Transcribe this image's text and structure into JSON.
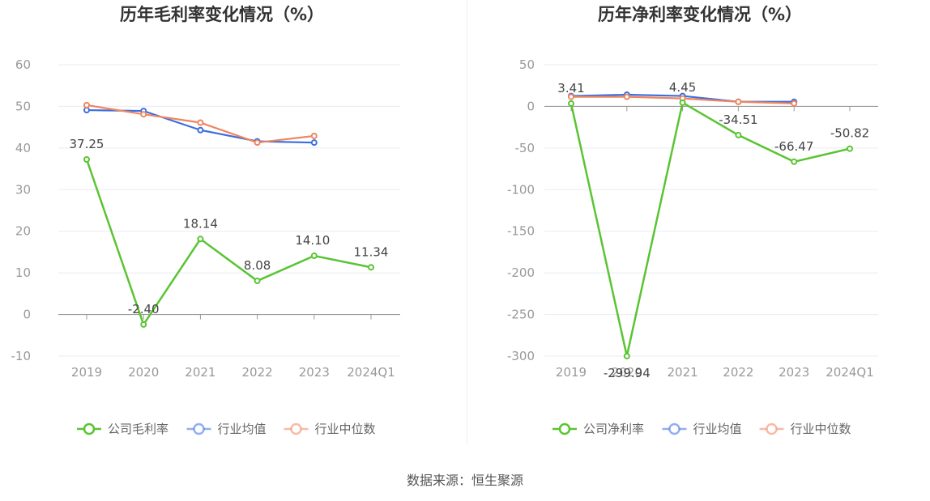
{
  "colors": {
    "company": "#5ac432",
    "industry_avg": "#3b6fe0",
    "industry_median": "#f0855e",
    "grid": "#e8ebf4",
    "axis": "#999999"
  },
  "source": "数据来源：恒生聚源",
  "chart_data": [
    {
      "type": "line",
      "title": "历年毛利率变化情况（%）",
      "categories": [
        "2019",
        "2020",
        "2021",
        "2022",
        "2023",
        "2024Q1"
      ],
      "ylim": [
        -10,
        60
      ],
      "yticks": [
        "-10",
        "0",
        "10",
        "20",
        "30",
        "40",
        "50",
        "60"
      ],
      "grid": true,
      "legend_position": "bottom",
      "series": [
        {
          "name": "公司毛利率",
          "key": "company",
          "values": [
            37.25,
            -2.4,
            18.14,
            8.08,
            14.1,
            11.34
          ],
          "labels": [
            "37.25",
            "-2.40",
            "18.14",
            "8.08",
            "14.10",
            "11.34"
          ]
        },
        {
          "name": "行业均值",
          "key": "industry_avg",
          "values": [
            49.1,
            48.9,
            44.3,
            41.6,
            41.3,
            null
          ]
        },
        {
          "name": "行业中位数",
          "key": "industry_median",
          "values": [
            50.3,
            48.1,
            46.1,
            41.3,
            42.9,
            null
          ]
        }
      ]
    },
    {
      "type": "line",
      "title": "历年净利率变化情况（%）",
      "categories": [
        "2019",
        "2020",
        "2021",
        "2022",
        "2023",
        "2024Q1"
      ],
      "ylim": [
        -300,
        50
      ],
      "yticks": [
        "-300",
        "-250",
        "-200",
        "-150",
        "-100",
        "-50",
        "0",
        "50"
      ],
      "grid": true,
      "legend_position": "bottom",
      "series": [
        {
          "name": "公司净利率",
          "key": "company",
          "values": [
            3.41,
            -299.94,
            4.45,
            -34.51,
            -66.47,
            -50.82
          ],
          "labels": [
            "3.41",
            "-299.94",
            "4.45",
            "-34.51",
            "-66.47",
            "-50.82"
          ]
        },
        {
          "name": "行业均值",
          "key": "industry_avg",
          "values": [
            12.5,
            14.0,
            12.5,
            5.5,
            5.5,
            null
          ]
        },
        {
          "name": "行业中位数",
          "key": "industry_median",
          "values": [
            11.5,
            11.5,
            9.5,
            5.5,
            3.5,
            null
          ]
        }
      ]
    }
  ]
}
